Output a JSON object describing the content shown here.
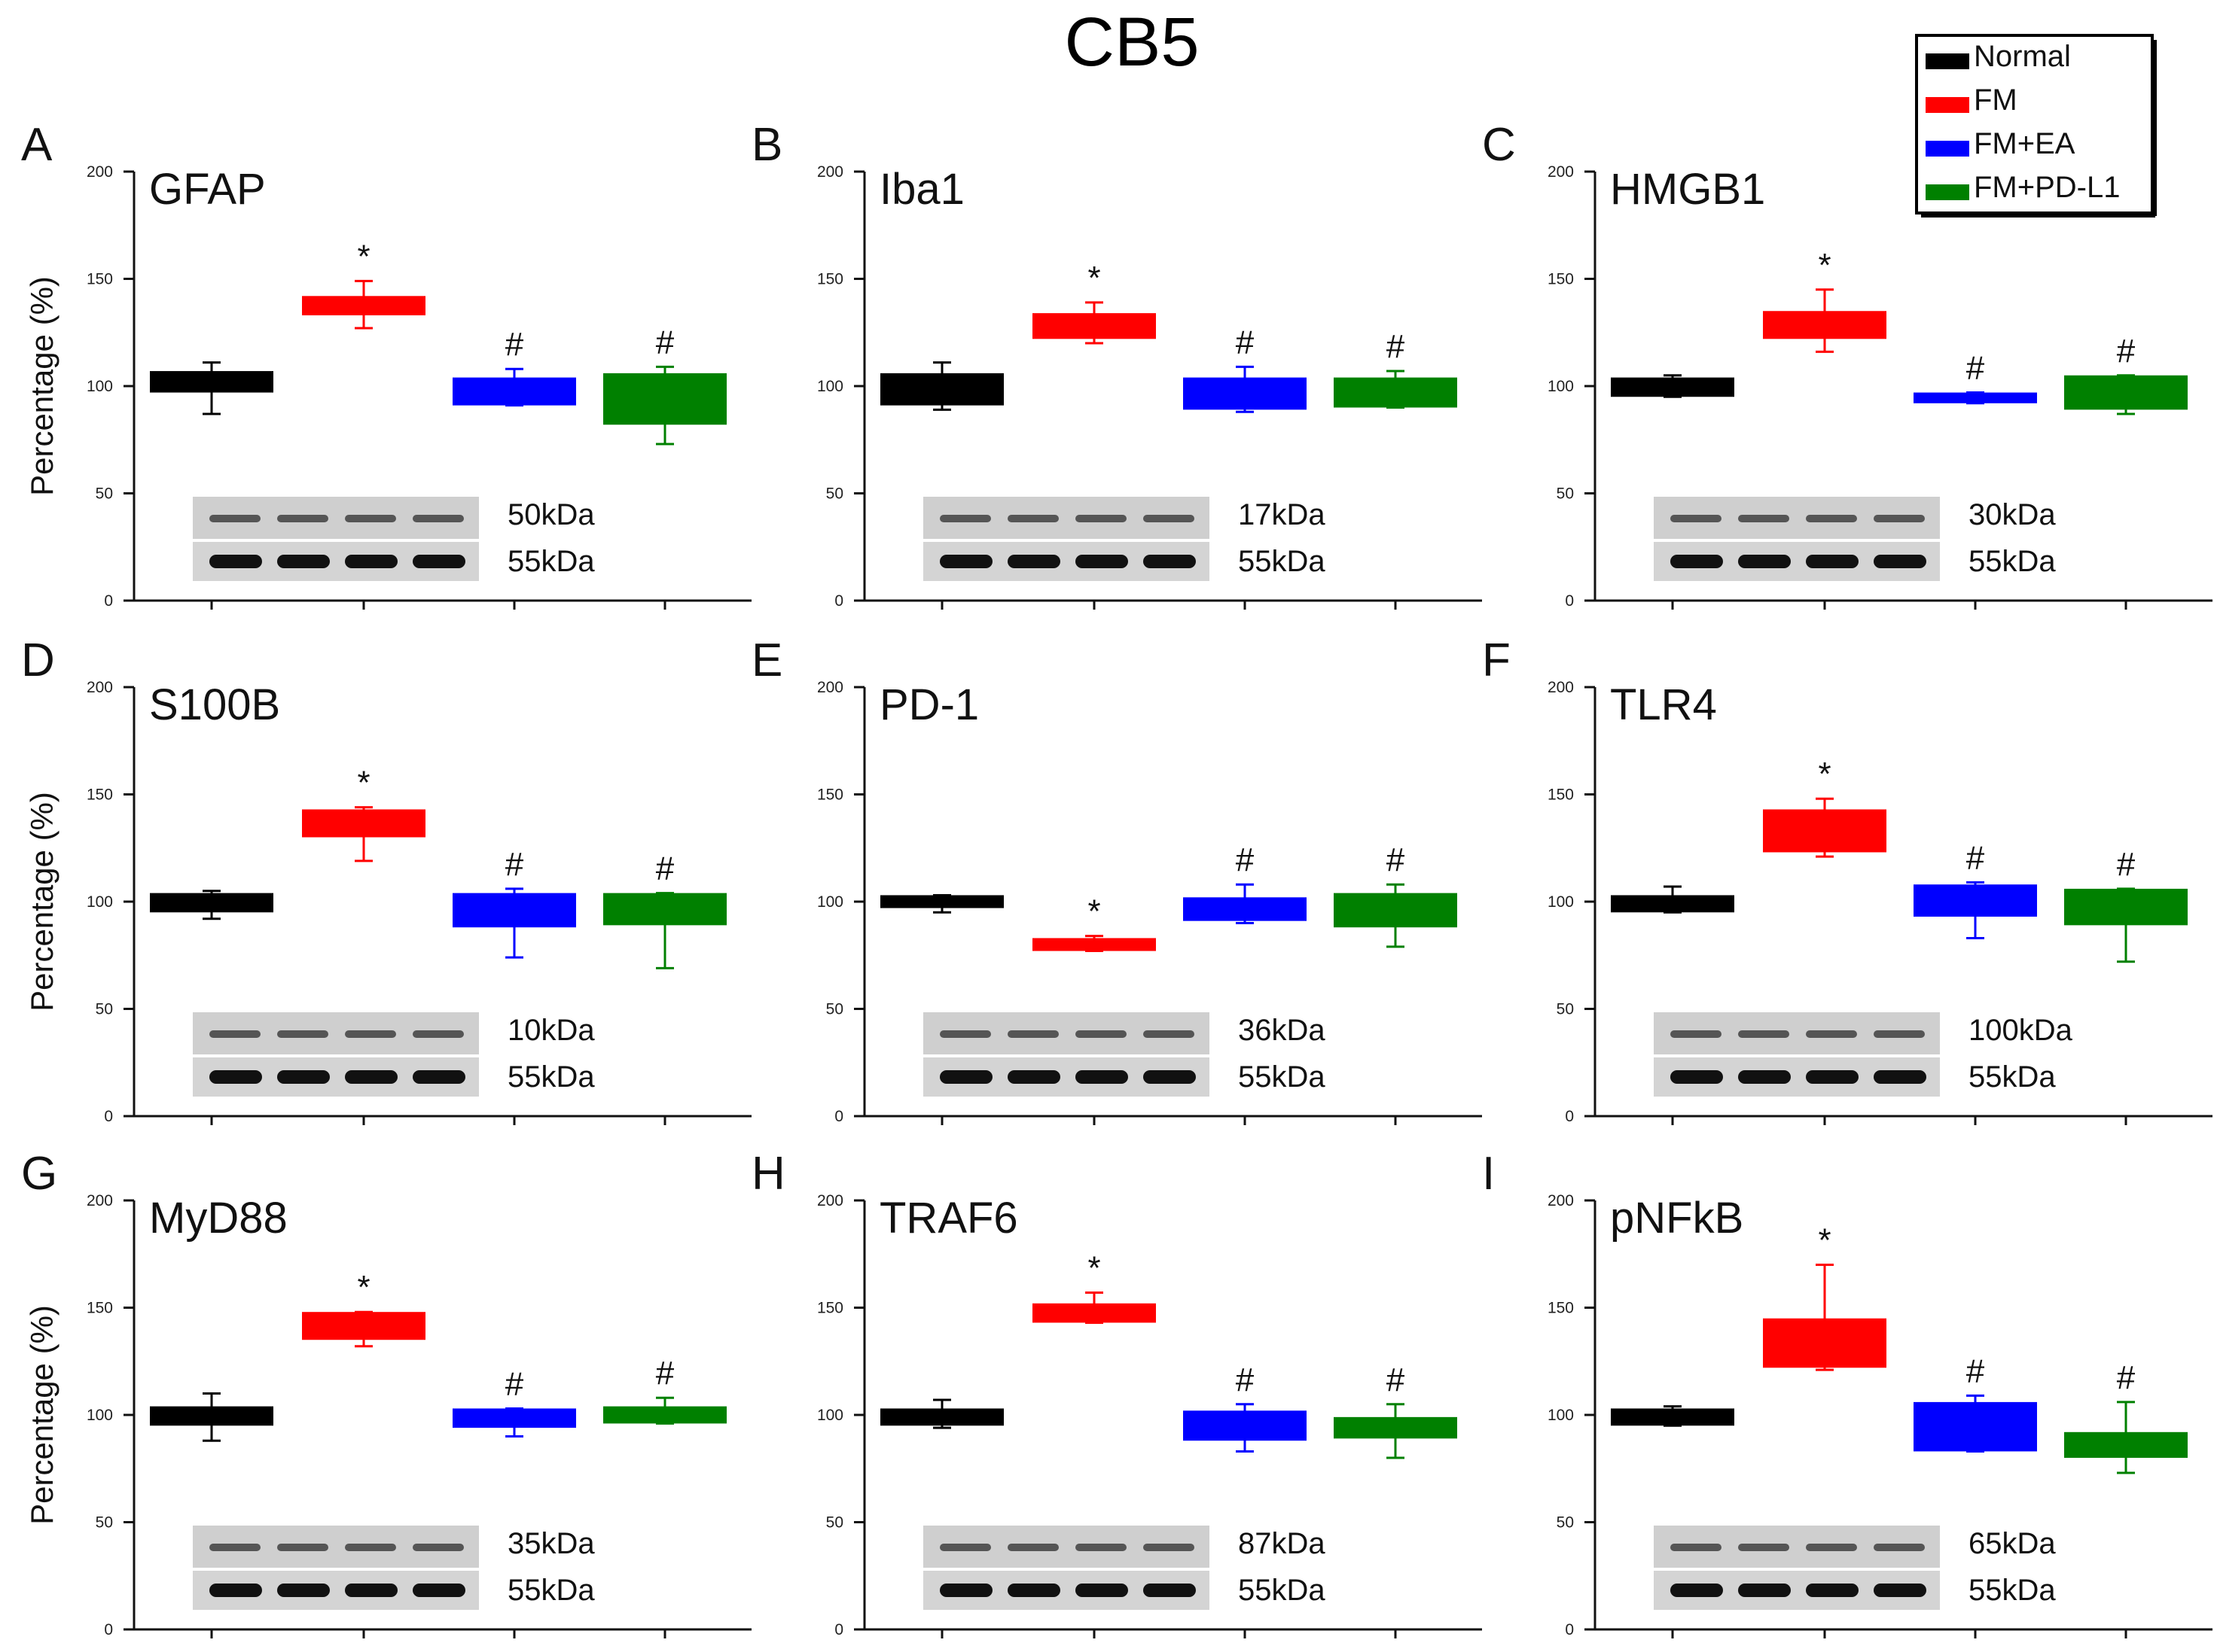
{
  "figure": {
    "title": "CB5"
  },
  "legend": {
    "entries": [
      {
        "label": "Normal",
        "color": "#000000"
      },
      {
        "label": "FM",
        "color": "#ff0000"
      },
      {
        "label": "FM+EA",
        "color": "#0000ff"
      },
      {
        "label": "FM+PD-L1",
        "color": "#008000"
      }
    ]
  },
  "chart_data": [
    {
      "type": "bar",
      "panel_label": "A",
      "title": "GFAP",
      "ylabel": "Percentage (%)",
      "ylim": [
        0,
        200
      ],
      "yticks": [
        0,
        50,
        100,
        150,
        200
      ],
      "categories": [
        "Normal",
        "FM",
        "FM+EA",
        "FM+PD-L1"
      ],
      "boxes": [
        {
          "low": 97,
          "high": 107,
          "err_low": 87,
          "err_high": 111,
          "mark": ""
        },
        {
          "low": 133,
          "high": 142,
          "err_low": 127,
          "err_high": 149,
          "mark": "*"
        },
        {
          "low": 91,
          "high": 104,
          "err_low": 91,
          "err_high": 108,
          "mark": "#"
        },
        {
          "low": 82,
          "high": 106,
          "err_low": 73,
          "err_high": 109,
          "mark": "#"
        }
      ],
      "blot": {
        "target_kda": "50kDa",
        "loading_kda": "55kDa"
      }
    },
    {
      "type": "bar",
      "panel_label": "B",
      "title": "Iba1",
      "ylabel": "",
      "ylim": [
        0,
        200
      ],
      "yticks": [
        0,
        50,
        100,
        150,
        200
      ],
      "categories": [
        "Normal",
        "FM",
        "FM+EA",
        "FM+PD-L1"
      ],
      "boxes": [
        {
          "low": 91,
          "high": 106,
          "err_low": 89,
          "err_high": 111,
          "mark": ""
        },
        {
          "low": 122,
          "high": 134,
          "err_low": 120,
          "err_high": 139,
          "mark": "*"
        },
        {
          "low": 89,
          "high": 104,
          "err_low": 88,
          "err_high": 109,
          "mark": "#"
        },
        {
          "low": 90,
          "high": 104,
          "err_low": 90,
          "err_high": 107,
          "mark": "#"
        }
      ],
      "blot": {
        "target_kda": "17kDa",
        "loading_kda": "55kDa"
      }
    },
    {
      "type": "bar",
      "panel_label": "C",
      "title": "HMGB1",
      "ylabel": "",
      "ylim": [
        0,
        200
      ],
      "yticks": [
        0,
        50,
        100,
        150,
        200
      ],
      "categories": [
        "Normal",
        "FM",
        "FM+EA",
        "FM+PD-L1"
      ],
      "boxes": [
        {
          "low": 95,
          "high": 104,
          "err_low": 95,
          "err_high": 105,
          "mark": ""
        },
        {
          "low": 122,
          "high": 135,
          "err_low": 116,
          "err_high": 145,
          "mark": "*"
        },
        {
          "low": 92,
          "high": 97,
          "err_low": 92,
          "err_high": 97,
          "mark": "#"
        },
        {
          "low": 89,
          "high": 105,
          "err_low": 87,
          "err_high": 105,
          "mark": "#"
        }
      ],
      "blot": {
        "target_kda": "30kDa",
        "loading_kda": "55kDa"
      }
    },
    {
      "type": "bar",
      "panel_label": "D",
      "title": "S100B",
      "ylabel": "Percentage (%)",
      "ylim": [
        0,
        200
      ],
      "yticks": [
        0,
        50,
        100,
        150,
        200
      ],
      "categories": [
        "Normal",
        "FM",
        "FM+EA",
        "FM+PD-L1"
      ],
      "boxes": [
        {
          "low": 95,
          "high": 104,
          "err_low": 92,
          "err_high": 105,
          "mark": ""
        },
        {
          "low": 130,
          "high": 143,
          "err_low": 119,
          "err_high": 144,
          "mark": "*"
        },
        {
          "low": 88,
          "high": 104,
          "err_low": 74,
          "err_high": 106,
          "mark": "#"
        },
        {
          "low": 89,
          "high": 104,
          "err_low": 69,
          "err_high": 104,
          "mark": "#"
        }
      ],
      "blot": {
        "target_kda": "10kDa",
        "loading_kda": "55kDa"
      }
    },
    {
      "type": "bar",
      "panel_label": "E",
      "title": "PD-1",
      "ylabel": "",
      "ylim": [
        0,
        200
      ],
      "yticks": [
        0,
        50,
        100,
        150,
        200
      ],
      "categories": [
        "Normal",
        "FM",
        "FM+EA",
        "FM+PD-L1"
      ],
      "boxes": [
        {
          "low": 97,
          "high": 103,
          "err_low": 95,
          "err_high": 103,
          "mark": ""
        },
        {
          "low": 77,
          "high": 83,
          "err_low": 77,
          "err_high": 84,
          "mark": "*"
        },
        {
          "low": 91,
          "high": 102,
          "err_low": 90,
          "err_high": 108,
          "mark": "#"
        },
        {
          "low": 88,
          "high": 104,
          "err_low": 79,
          "err_high": 108,
          "mark": "#"
        }
      ],
      "blot": {
        "target_kda": "36kDa",
        "loading_kda": "55kDa"
      }
    },
    {
      "type": "bar",
      "panel_label": "F",
      "title": "TLR4",
      "ylabel": "",
      "ylim": [
        0,
        200
      ],
      "yticks": [
        0,
        50,
        100,
        150,
        200
      ],
      "categories": [
        "Normal",
        "FM",
        "FM+EA",
        "FM+PD-L1"
      ],
      "boxes": [
        {
          "low": 95,
          "high": 103,
          "err_low": 95,
          "err_high": 107,
          "mark": ""
        },
        {
          "low": 123,
          "high": 143,
          "err_low": 121,
          "err_high": 148,
          "mark": "*"
        },
        {
          "low": 93,
          "high": 108,
          "err_low": 83,
          "err_high": 109,
          "mark": "#"
        },
        {
          "low": 89,
          "high": 106,
          "err_low": 72,
          "err_high": 106,
          "mark": "#"
        }
      ],
      "blot": {
        "target_kda": "100kDa",
        "loading_kda": "55kDa"
      }
    },
    {
      "type": "bar",
      "panel_label": "G",
      "title": "MyD88",
      "ylabel": "Percentage (%)",
      "ylim": [
        0,
        200
      ],
      "yticks": [
        0,
        50,
        100,
        150,
        200
      ],
      "categories": [
        "Normal",
        "FM",
        "FM+EA",
        "FM+PD-L1"
      ],
      "boxes": [
        {
          "low": 95,
          "high": 104,
          "err_low": 88,
          "err_high": 110,
          "mark": ""
        },
        {
          "low": 135,
          "high": 148,
          "err_low": 132,
          "err_high": 148,
          "mark": "*"
        },
        {
          "low": 94,
          "high": 103,
          "err_low": 90,
          "err_high": 103,
          "mark": "#"
        },
        {
          "low": 96,
          "high": 104,
          "err_low": 96,
          "err_high": 108,
          "mark": "#"
        }
      ],
      "blot": {
        "target_kda": "35kDa",
        "loading_kda": "55kDa"
      }
    },
    {
      "type": "bar",
      "panel_label": "H",
      "title": "TRAF6",
      "ylabel": "",
      "ylim": [
        0,
        200
      ],
      "yticks": [
        0,
        50,
        100,
        150,
        200
      ],
      "categories": [
        "Normal",
        "FM",
        "FM+EA",
        "FM+PD-L1"
      ],
      "boxes": [
        {
          "low": 95,
          "high": 103,
          "err_low": 94,
          "err_high": 107,
          "mark": ""
        },
        {
          "low": 143,
          "high": 152,
          "err_low": 143,
          "err_high": 157,
          "mark": "*"
        },
        {
          "low": 88,
          "high": 102,
          "err_low": 83,
          "err_high": 105,
          "mark": "#"
        },
        {
          "low": 89,
          "high": 99,
          "err_low": 80,
          "err_high": 105,
          "mark": "#"
        }
      ],
      "blot": {
        "target_kda": "87kDa",
        "loading_kda": "55kDa"
      }
    },
    {
      "type": "bar",
      "panel_label": "I",
      "title": "pNFkB",
      "ylabel": "",
      "ylim": [
        0,
        200
      ],
      "yticks": [
        0,
        50,
        100,
        150,
        200
      ],
      "categories": [
        "Normal",
        "FM",
        "FM+EA",
        "FM+PD-L1"
      ],
      "boxes": [
        {
          "low": 95,
          "high": 103,
          "err_low": 95,
          "err_high": 104,
          "mark": ""
        },
        {
          "low": 122,
          "high": 145,
          "err_low": 121,
          "err_high": 170,
          "mark": "*"
        },
        {
          "low": 83,
          "high": 106,
          "err_low": 83,
          "err_high": 109,
          "mark": "#"
        },
        {
          "low": 80,
          "high": 92,
          "err_low": 73,
          "err_high": 106,
          "mark": "#"
        }
      ],
      "blot": {
        "target_kda": "65kDa",
        "loading_kda": "55kDa"
      }
    }
  ]
}
